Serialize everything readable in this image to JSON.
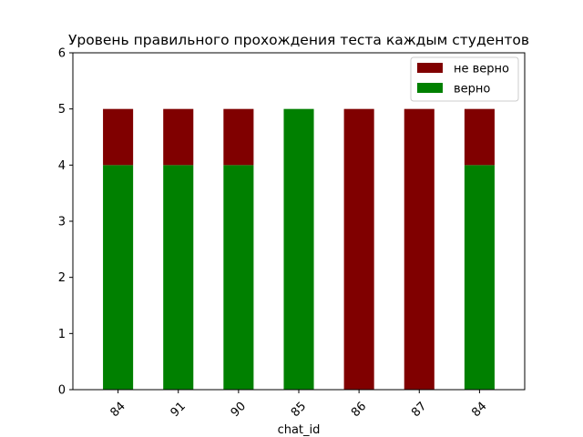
{
  "chart_data": {
    "type": "bar",
    "stacked": true,
    "title": "Уровень правильного прохождения теста каждым студентов",
    "xlabel": "chat_id",
    "ylabel": "",
    "categories": [
      "84",
      "91",
      "90",
      "85",
      "86",
      "87",
      "84"
    ],
    "series": [
      {
        "name": "верно",
        "color": "#008000",
        "values": [
          4,
          4,
          4,
          5,
          0,
          0,
          4
        ]
      },
      {
        "name": "не верно",
        "color": "#800000",
        "values": [
          1,
          1,
          1,
          0,
          5,
          5,
          1
        ]
      }
    ],
    "ylim": [
      0,
      6
    ],
    "yticks": [
      0,
      1,
      2,
      3,
      4,
      5,
      6
    ],
    "legend": {
      "position": "top-right",
      "order": [
        "не верно",
        "верно"
      ]
    },
    "grid": false
  }
}
